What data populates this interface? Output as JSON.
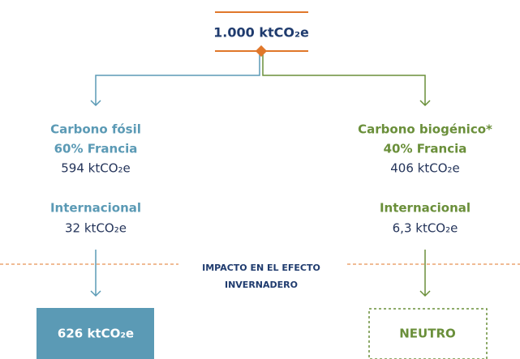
{
  "total": "1.000 ktCO₂e",
  "left": {
    "title": "Carbono fósil",
    "share": "60% Francia",
    "value": "594 ktCO₂e",
    "intl_label": "Internacional",
    "intl_value": "32 ktCO₂e",
    "result": "626 ktCO₂e"
  },
  "right": {
    "title": "Carbono biogénico*",
    "share": "40% Francia",
    "value": "406 ktCO₂e",
    "intl_label": "Internacional",
    "intl_value": "6,3 ktCO₂e",
    "result": "NEUTRO"
  },
  "divider": {
    "line1": "IMPACTO EN EL EFECTO",
    "line2": "INVERNADERO"
  }
}
